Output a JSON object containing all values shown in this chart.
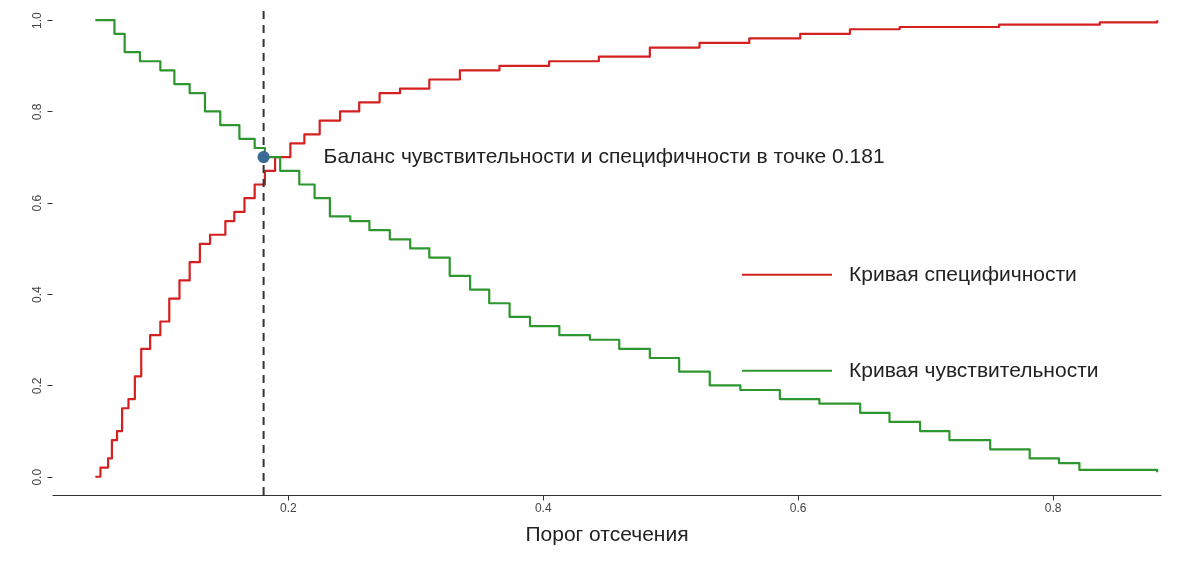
{
  "chart_data": {
    "type": "step",
    "xlabel": "Порог отсечения",
    "xlim": [
      0.015,
      0.885
    ],
    "ylim": [
      -0.04,
      1.02
    ],
    "xticks": [
      0.2,
      0.4,
      0.6,
      0.8
    ],
    "yticks": [
      {
        "value": 0,
        "label": "0.0"
      },
      0.2,
      0.4,
      0.6,
      0.8,
      {
        "value": 1,
        "label": "1.0"
      }
    ],
    "grid": false,
    "legend": "right",
    "line_style": "solid",
    "series": [
      {
        "name": "Кривая специфичности",
        "color": "#d42020",
        "x": [
          0.049,
          0.053,
          0.055,
          0.059,
          0.062,
          0.066,
          0.07,
          0.075,
          0.08,
          0.085,
          0.092,
          0.1,
          0.107,
          0.115,
          0.123,
          0.131,
          0.139,
          0.151,
          0.158,
          0.166,
          0.174,
          0.182,
          0.19,
          0.202,
          0.213,
          0.225,
          0.241,
          0.256,
          0.272,
          0.288,
          0.311,
          0.335,
          0.366,
          0.405,
          0.444,
          0.484,
          0.523,
          0.562,
          0.602,
          0.641,
          0.68,
          0.758,
          0.837,
          0.882
        ],
        "values": [
          0.0,
          0.02,
          0.02,
          0.04,
          0.08,
          0.1,
          0.15,
          0.17,
          0.22,
          0.28,
          0.31,
          0.34,
          0.39,
          0.43,
          0.47,
          0.51,
          0.53,
          0.56,
          0.58,
          0.61,
          0.64,
          0.67,
          0.7,
          0.73,
          0.75,
          0.78,
          0.8,
          0.82,
          0.84,
          0.85,
          0.87,
          0.89,
          0.9,
          0.91,
          0.92,
          0.94,
          0.95,
          0.96,
          0.97,
          0.98,
          0.985,
          0.99,
          0.995,
          1.0
        ]
      },
      {
        "name": "Кривая чувствительности",
        "color": "#2e962e",
        "x": [
          0.049,
          0.059,
          0.064,
          0.072,
          0.084,
          0.1,
          0.111,
          0.123,
          0.135,
          0.147,
          0.162,
          0.174,
          0.182,
          0.194,
          0.209,
          0.221,
          0.233,
          0.249,
          0.264,
          0.28,
          0.296,
          0.311,
          0.327,
          0.343,
          0.358,
          0.374,
          0.39,
          0.413,
          0.437,
          0.46,
          0.484,
          0.507,
          0.531,
          0.555,
          0.586,
          0.617,
          0.649,
          0.672,
          0.696,
          0.719,
          0.751,
          0.782,
          0.805,
          0.821,
          0.868,
          0.882
        ],
        "values": [
          1.0,
          1.0,
          0.97,
          0.93,
          0.91,
          0.89,
          0.86,
          0.84,
          0.8,
          0.77,
          0.74,
          0.72,
          0.7,
          0.67,
          0.64,
          0.61,
          0.57,
          0.56,
          0.54,
          0.52,
          0.5,
          0.48,
          0.44,
          0.41,
          0.38,
          0.35,
          0.33,
          0.31,
          0.3,
          0.28,
          0.26,
          0.23,
          0.2,
          0.19,
          0.17,
          0.16,
          0.14,
          0.12,
          0.1,
          0.08,
          0.06,
          0.04,
          0.03,
          0.015,
          0.015,
          0.01
        ]
      },
      {
        "type": "scatter",
        "color": "#3b6b95",
        "marker": "circle",
        "x": [
          0.181
        ],
        "values": [
          0.7
        ]
      }
    ],
    "ref_lines": [
      {
        "axis": "x",
        "value": 0.181,
        "color": "#333333",
        "line_style": "dashed"
      }
    ],
    "annotations": [
      {
        "text": "Баланс чувствительности и специфичности в точке 0.181",
        "x": 0.181,
        "y": 0.7
      }
    ]
  }
}
